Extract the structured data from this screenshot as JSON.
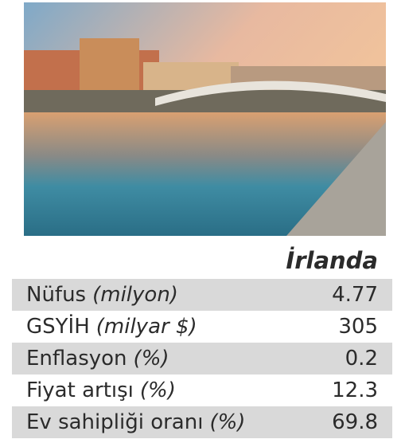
{
  "table": {
    "title": "İrlanda",
    "rows": [
      {
        "label": "Nüfus",
        "unit": "(milyon)",
        "value": 4.77
      },
      {
        "label": "GSYİH",
        "unit": "(milyar $)",
        "value": 305
      },
      {
        "label": "Enflasyon",
        "unit": "(%)",
        "value": 0.2
      },
      {
        "label": "Fiyat artışı",
        "unit": "(%)",
        "value": 12.3
      },
      {
        "label": "Ev sahipliği oranı",
        "unit": "(%)",
        "value": 69.8
      }
    ]
  }
}
